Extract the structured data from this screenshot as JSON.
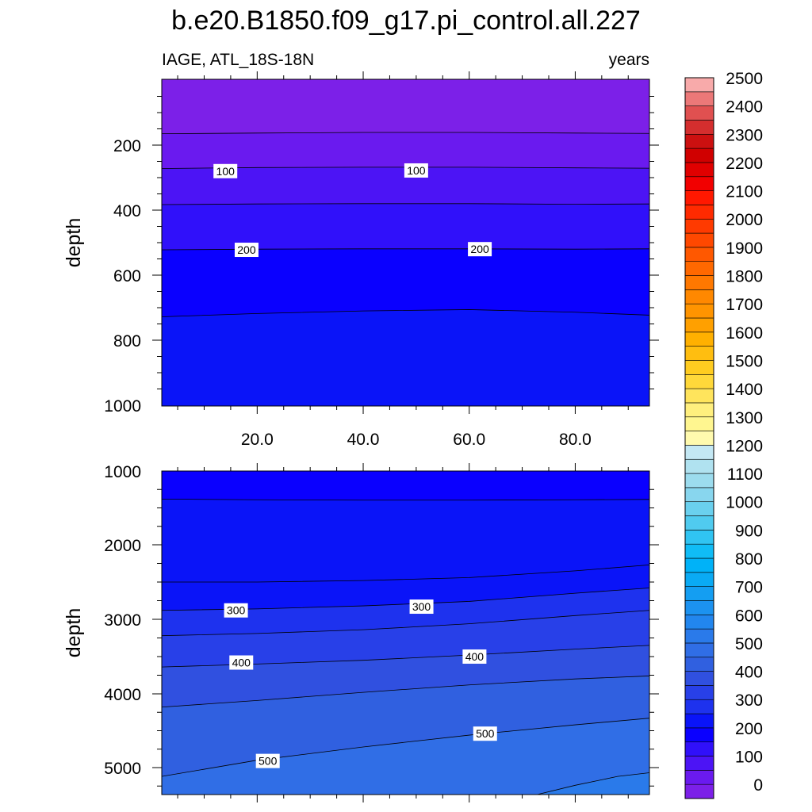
{
  "title": "b.e20.B1850.f09_g17.pi_control.all.227",
  "left_subtitle": "IAGE, ATL_18S-18N",
  "right_subtitle": "years",
  "chart_data": [
    {
      "type": "contour",
      "panel": "upper",
      "variable": "IAGE",
      "region": "ATL_18S-18N",
      "units": "years",
      "xlabel": "",
      "ylabel": "depth",
      "xlim": [
        2,
        94
      ],
      "ylim": [
        0,
        1000
      ],
      "y_reversed": true,
      "xticks": [
        20,
        40,
        60,
        80
      ],
      "xtick_labels": [
        "20.0",
        "40.0",
        "60.0",
        "80.0"
      ],
      "yticks": [
        200,
        400,
        600,
        800,
        1000
      ],
      "ytick_labels": [
        "200",
        "400",
        "600",
        "800",
        "1000"
      ],
      "contour_lines": [
        {
          "level": 50,
          "x": [
            2,
            20,
            40,
            60,
            80,
            94
          ],
          "y": [
            165,
            163,
            161,
            161,
            163,
            164
          ]
        },
        {
          "level": 100,
          "x": [
            2,
            20,
            40,
            60,
            80,
            94
          ],
          "y": [
            272,
            269,
            268,
            268,
            270,
            271
          ]
        },
        {
          "level": 150,
          "x": [
            2,
            20,
            40,
            60,
            80,
            94
          ],
          "y": [
            383,
            381,
            380,
            380,
            382,
            381
          ]
        },
        {
          "level": 200,
          "x": [
            2,
            20,
            40,
            60,
            80,
            94
          ],
          "y": [
            522,
            520,
            519,
            519,
            520,
            519
          ]
        },
        {
          "level": 250,
          "x": [
            2,
            20,
            40,
            60,
            80,
            94
          ],
          "y": [
            728,
            718,
            710,
            706,
            714,
            723
          ]
        }
      ],
      "line_labels": [
        {
          "text": "100",
          "x": 14,
          "y": 280
        },
        {
          "text": "100",
          "x": 50,
          "y": 278
        },
        {
          "text": "200",
          "x": 18,
          "y": 522
        },
        {
          "text": "200",
          "x": 62,
          "y": 520
        }
      ]
    },
    {
      "type": "contour",
      "panel": "lower",
      "variable": "IAGE",
      "region": "ATL_18S-18N",
      "units": "years",
      "xlabel": "",
      "ylabel": "depth",
      "xlim": [
        2,
        94
      ],
      "ylim": [
        1000,
        5375
      ],
      "y_reversed": true,
      "yticks": [
        1000,
        2000,
        3000,
        4000,
        5000
      ],
      "ytick_labels": [
        "1000",
        "2000",
        "3000",
        "4000",
        "5000"
      ],
      "contour_lines": [
        {
          "level": 250,
          "x": [
            2,
            20,
            40,
            60,
            80,
            94
          ],
          "y": [
            1380,
            1390,
            1395,
            1395,
            1390,
            1385
          ]
        },
        {
          "level": 250,
          "x": [
            2,
            20,
            40,
            60,
            80,
            94
          ],
          "y": [
            2500,
            2500,
            2480,
            2440,
            2350,
            2270
          ]
        },
        {
          "level": 300,
          "x": [
            2,
            20,
            40,
            60,
            80,
            94
          ],
          "y": [
            2880,
            2860,
            2820,
            2760,
            2650,
            2580
          ]
        },
        {
          "level": 350,
          "x": [
            2,
            20,
            40,
            60,
            80,
            94
          ],
          "y": [
            3220,
            3190,
            3140,
            3060,
            2950,
            2880
          ]
        },
        {
          "level": 400,
          "x": [
            2,
            20,
            40,
            60,
            80,
            94
          ],
          "y": [
            3640,
            3600,
            3550,
            3480,
            3400,
            3350
          ]
        },
        {
          "level": 450,
          "x": [
            2,
            20,
            40,
            60,
            80,
            94
          ],
          "y": [
            4180,
            4090,
            3980,
            3880,
            3800,
            3760
          ]
        },
        {
          "level": 500,
          "x": [
            2,
            20,
            40,
            60,
            80,
            94
          ],
          "y": [
            5120,
            4900,
            4720,
            4560,
            4420,
            4330
          ]
        },
        {
          "level": 550,
          "x": [
            72,
            80,
            88,
            94
          ],
          "y": [
            5380,
            5240,
            5120,
            5070
          ]
        }
      ],
      "line_labels": [
        {
          "text": "300",
          "x": 16,
          "y": 2880
        },
        {
          "text": "300",
          "x": 51,
          "y": 2830
        },
        {
          "text": "400",
          "x": 17,
          "y": 3580
        },
        {
          "text": "400",
          "x": 61,
          "y": 3500
        },
        {
          "text": "500",
          "x": 22,
          "y": 4910
        },
        {
          "text": "500",
          "x": 63,
          "y": 4540
        }
      ]
    }
  ],
  "colorbar": {
    "levels": [
      0,
      50,
      100,
      150,
      200,
      250,
      300,
      350,
      400,
      450,
      500,
      550,
      600,
      650,
      700,
      750,
      800,
      850,
      900,
      950,
      1000,
      1050,
      1100,
      1150,
      1200,
      1250,
      1300,
      1350,
      1400,
      1450,
      1500,
      1550,
      1600,
      1650,
      1700,
      1750,
      1800,
      1850,
      1900,
      1950,
      2000,
      2050,
      2100,
      2150,
      2200,
      2250,
      2300,
      2350,
      2400,
      2450,
      2500
    ],
    "tick_labels": [
      "0",
      "100",
      "200",
      "300",
      "400",
      "500",
      "600",
      "700",
      "800",
      "900",
      "1000",
      "1100",
      "1200",
      "1300",
      "1400",
      "1500",
      "1600",
      "1700",
      "1800",
      "1900",
      "2000",
      "2100",
      "2200",
      "2300",
      "2400",
      "2500"
    ],
    "colors": [
      "#7c20e8",
      "#6a1aef",
      "#4c14f5",
      "#3010fa",
      "#0a00ff",
      "#0a14f8",
      "#1e32ee",
      "#2840e8",
      "#3050e0",
      "#3060e0",
      "#306ee6",
      "#2a7aea",
      "#2286ee",
      "#1c92f0",
      "#149ef2",
      "#0aaaf4",
      "#00b2f8",
      "#10bcf6",
      "#30c4f2",
      "#50cbef",
      "#6ad0ee",
      "#88d6ee",
      "#9cdcee",
      "#b0e2f0",
      "#c4e8f4",
      "#fffaae",
      "#fff690",
      "#ffef7e",
      "#ffe45c",
      "#ffd83a",
      "#ffcc20",
      "#ffbe10",
      "#ffb000",
      "#ffa000",
      "#ff9400",
      "#ff8800",
      "#ff7800",
      "#ff6800",
      "#ff5800",
      "#ff4800",
      "#ff3a00",
      "#ff2a00",
      "#ff1800",
      "#f20000",
      "#e00000",
      "#d00000",
      "#cc1010",
      "#d42e2e",
      "#e05050",
      "#ec7878",
      "#f8aaaa"
    ]
  }
}
